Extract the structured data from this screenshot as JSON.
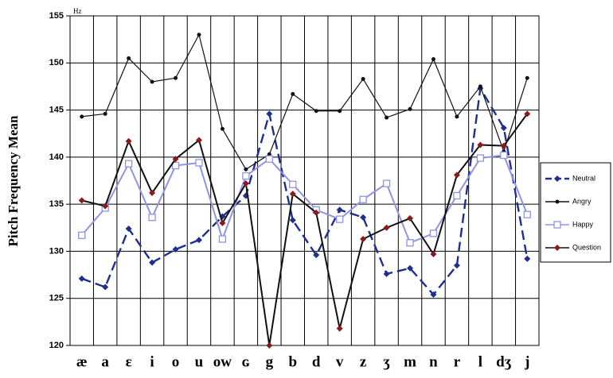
{
  "chart_data": {
    "type": "line",
    "y_label": "Pitch Frequency Mean",
    "unit": "Hz",
    "categories": [
      "æ",
      "a",
      "ɛ",
      "i",
      "o",
      "u",
      "ow",
      "ɢ",
      "g",
      "b",
      "d",
      "v",
      "z",
      "ʒ",
      "m",
      "n",
      "r",
      "l",
      "dʒ",
      "j"
    ],
    "ylim": [
      120,
      155
    ],
    "yticks": [
      120,
      125,
      130,
      135,
      140,
      145,
      150,
      155
    ],
    "grid": true,
    "legend": "right",
    "series": [
      {
        "name": "Neutral",
        "color": "#1f2f8f",
        "dashed": true,
        "marker": "diamond",
        "values": [
          127.1,
          126.2,
          132.4,
          128.8,
          130.2,
          131.2,
          133.7,
          135.9,
          144.6,
          133.3,
          129.6,
          134.4,
          133.6,
          127.6,
          128.2,
          125.4,
          128.5,
          147.3,
          143.1,
          129.2
        ]
      },
      {
        "name": "Angry",
        "color": "#111111",
        "dashed": false,
        "marker": "dot",
        "values": [
          144.3,
          144.6,
          150.5,
          148.0,
          148.4,
          153.0,
          143.0,
          138.7,
          140.3,
          146.7,
          144.9,
          144.9,
          148.3,
          144.2,
          145.1,
          150.4,
          144.3,
          147.5,
          140.6,
          148.4
        ]
      },
      {
        "name": "Happy",
        "color": "#8f93e6",
        "dashed": false,
        "marker": "square",
        "values": [
          131.7,
          134.6,
          139.3,
          133.6,
          139.1,
          139.4,
          131.3,
          138.0,
          139.8,
          137.1,
          134.4,
          133.4,
          135.5,
          137.2,
          130.9,
          131.9,
          135.9,
          139.9,
          140.2,
          133.9
        ]
      },
      {
        "name": "Question",
        "color": "#8b1a1a",
        "line_color": "#111111",
        "dashed": false,
        "marker": "diamond",
        "values": [
          135.4,
          134.8,
          141.7,
          136.2,
          139.8,
          141.8,
          133.0,
          137.2,
          120.0,
          136.1,
          134.1,
          121.8,
          131.3,
          132.5,
          133.5,
          129.7,
          138.1,
          141.3,
          141.2,
          144.6
        ]
      }
    ]
  }
}
